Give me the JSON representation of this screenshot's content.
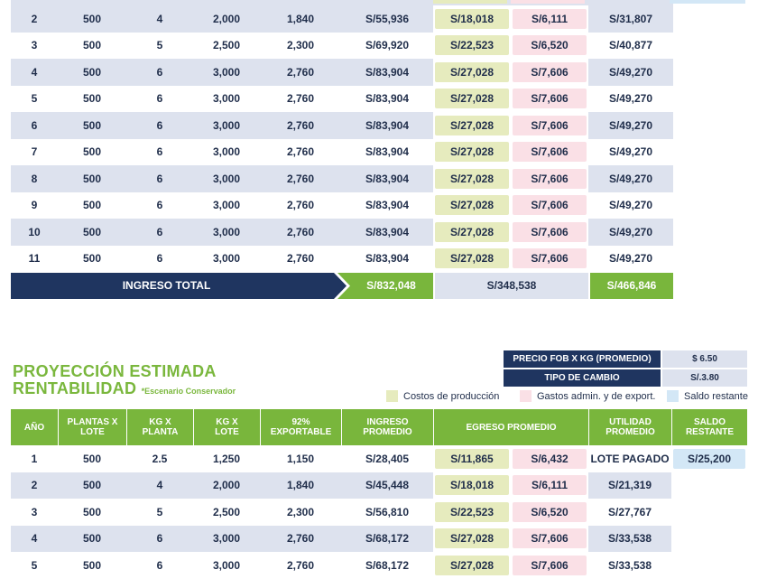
{
  "table1": {
    "rows": [
      [
        "2",
        "500",
        "4",
        "2,000",
        "1,840",
        "S/55,936",
        "S/18,018",
        "S/6,111",
        "S/31,807"
      ],
      [
        "3",
        "500",
        "5",
        "2,500",
        "2,300",
        "S/69,920",
        "S/22,523",
        "S/6,520",
        "S/40,877"
      ],
      [
        "4",
        "500",
        "6",
        "3,000",
        "2,760",
        "S/83,904",
        "S/27,028",
        "S/7,606",
        "S/49,270"
      ],
      [
        "5",
        "500",
        "6",
        "3,000",
        "2,760",
        "S/83,904",
        "S/27,028",
        "S/7,606",
        "S/49,270"
      ],
      [
        "6",
        "500",
        "6",
        "3,000",
        "2,760",
        "S/83,904",
        "S/27,028",
        "S/7,606",
        "S/49,270"
      ],
      [
        "7",
        "500",
        "6",
        "3,000",
        "2,760",
        "S/83,904",
        "S/27,028",
        "S/7,606",
        "S/49,270"
      ],
      [
        "8",
        "500",
        "6",
        "3,000",
        "2,760",
        "S/83,904",
        "S/27,028",
        "S/7,606",
        "S/49,270"
      ],
      [
        "9",
        "500",
        "6",
        "3,000",
        "2,760",
        "S/83,904",
        "S/27,028",
        "S/7,606",
        "S/49,270"
      ],
      [
        "10",
        "500",
        "6",
        "3,000",
        "2,760",
        "S/83,904",
        "S/27,028",
        "S/7,606",
        "S/49,270"
      ],
      [
        "11",
        "500",
        "6",
        "3,000",
        "2,760",
        "S/83,904",
        "S/27,028",
        "S/7,606",
        "S/49,270"
      ]
    ],
    "total": {
      "label": "INGRESO TOTAL",
      "ingreso": "S/832,048",
      "egreso": "S/348,538",
      "utilidad": "S/466,846"
    }
  },
  "section2": {
    "title_line1": "PROYECCIÓN ESTIMADA",
    "title_line2": "RENTABILIDAD",
    "subtitle": "*Escenario Conservador",
    "info": [
      {
        "label": "PRECIO FOB X KG (PROMEDIO)",
        "value": "$ 6.50"
      },
      {
        "label": "TIPO DE CAMBIO",
        "value": "S/.3.80"
      }
    ],
    "legend": {
      "produccion": "Costos de producción",
      "gastos": "Gastos admin. y de export.",
      "saldo": "Saldo restante"
    },
    "headers": [
      "AÑO",
      "PLANTAS X LOTE",
      "KG X PLANTA",
      "KG X LOTE",
      "92% EXPORTABLE",
      "INGRESO PROMEDIO",
      "EGRESO PROMEDIO",
      "UTILIDAD PROMEDIO",
      "SALDO RESTANTE"
    ],
    "rows": [
      [
        "1",
        "500",
        "2.5",
        "1,250",
        "1,150",
        "S/28,405",
        "S/11,865",
        "S/6,432",
        "LOTE PAGADO",
        "S/25,200"
      ],
      [
        "2",
        "500",
        "4",
        "2,000",
        "1,840",
        "S/45,448",
        "S/18,018",
        "S/6,111",
        "S/21,319",
        ""
      ],
      [
        "3",
        "500",
        "5",
        "2,500",
        "2,300",
        "S/56,810",
        "S/22,523",
        "S/6,520",
        "S/27,767",
        ""
      ],
      [
        "4",
        "500",
        "6",
        "3,000",
        "2,760",
        "S/68,172",
        "S/27,028",
        "S/7,606",
        "S/33,538",
        ""
      ],
      [
        "5",
        "500",
        "6",
        "3,000",
        "2,760",
        "S/68,172",
        "S/27,028",
        "S/7,606",
        "S/33,538",
        ""
      ]
    ]
  },
  "colors": {
    "navy": "#1f3560",
    "green": "#79b63c",
    "row_alt": "#dde2ee",
    "produccion": "#e6ebbe",
    "gastos": "#fae0e6",
    "saldo": "#d3e7f6"
  }
}
